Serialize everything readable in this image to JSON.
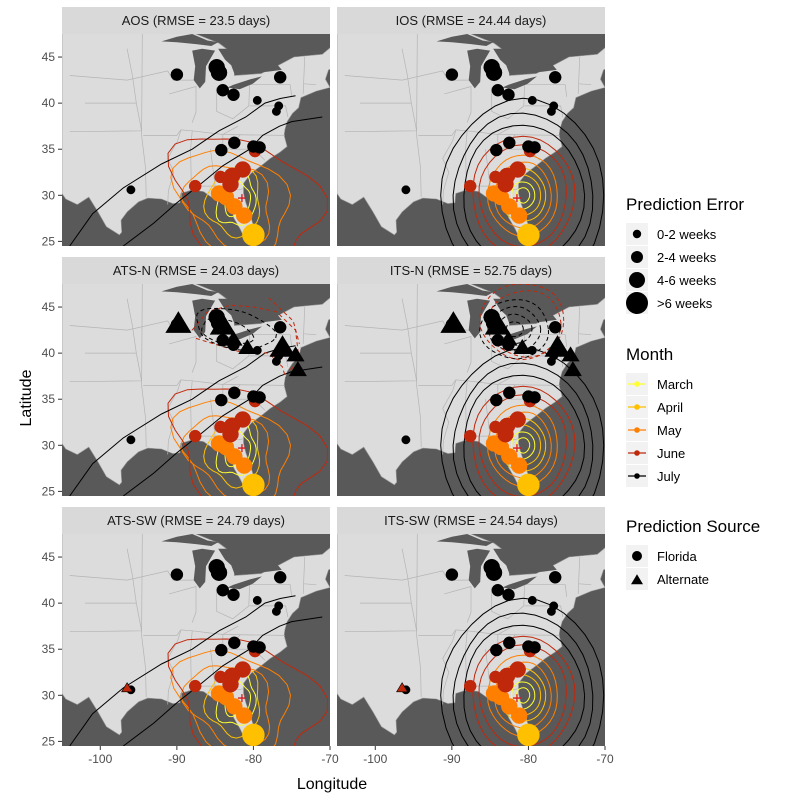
{
  "chart_data": {
    "type": "scatter",
    "xlabel": "Longitude",
    "ylabel": "Latitude",
    "xlim": [
      -105,
      -70
    ],
    "ylim": [
      24.5,
      47.5
    ],
    "x_ticks": [
      -100,
      -90,
      -80,
      -70
    ],
    "y_ticks": [
      25,
      30,
      35,
      40,
      45
    ],
    "grid": true,
    "origin": {
      "lon": -81.5,
      "lat": 29.7
    },
    "panels": [
      {
        "id": "aos",
        "title": "AOS (RMSE = 23.5 days)",
        "model": "gradient-lines"
      },
      {
        "id": "ios",
        "title": "IOS (RMSE = 24.44 days)",
        "model": "ring"
      },
      {
        "id": "atsn",
        "title": "ATS-N (RMSE = 24.03 days)",
        "model": "gradient-lines",
        "alt": "north"
      },
      {
        "id": "itsn",
        "title": "ITS-N (RMSE = 52.75 days)",
        "model": "ring",
        "alt": "north"
      },
      {
        "id": "atssw",
        "title": "ATS-SW (RMSE = 24.79 days)",
        "model": "gradient-lines",
        "alt": "southwest"
      },
      {
        "id": "itssw",
        "title": "ITS-SW (RMSE = 24.54 days)",
        "model": "ring",
        "alt": "southwest"
      }
    ],
    "florida_points": [
      {
        "lon": -80.0,
        "lat": 25.7,
        "err": 3,
        "month": "April"
      },
      {
        "lon": -81.2,
        "lat": 27.8,
        "err": 2,
        "month": "May"
      },
      {
        "lon": -82.5,
        "lat": 28.8,
        "err": 2,
        "month": "May"
      },
      {
        "lon": -83.6,
        "lat": 29.8,
        "err": 2,
        "month": "May"
      },
      {
        "lon": -84.5,
        "lat": 30.2,
        "err": 2,
        "month": "May"
      },
      {
        "lon": -83.0,
        "lat": 31.2,
        "err": 2,
        "month": "June"
      },
      {
        "lon": -84.3,
        "lat": 32.0,
        "err": 1,
        "month": "June"
      },
      {
        "lon": -82.8,
        "lat": 32.1,
        "err": 2,
        "month": "June"
      },
      {
        "lon": -81.4,
        "lat": 32.8,
        "err": 2,
        "month": "June"
      },
      {
        "lon": -87.6,
        "lat": 31.0,
        "err": 1,
        "month": "June"
      },
      {
        "lon": -79.8,
        "lat": 34.8,
        "err": 1,
        "month": "June"
      },
      {
        "lon": -96.0,
        "lat": 30.6,
        "err": 0,
        "month": "July"
      },
      {
        "lon": -84.2,
        "lat": 34.9,
        "err": 1,
        "month": "July"
      },
      {
        "lon": -82.5,
        "lat": 35.7,
        "err": 1,
        "month": "July"
      },
      {
        "lon": -80.0,
        "lat": 35.3,
        "err": 1,
        "month": "July"
      },
      {
        "lon": -79.2,
        "lat": 35.2,
        "err": 1,
        "month": "July"
      },
      {
        "lon": -77.0,
        "lat": 39.1,
        "err": 0,
        "month": "July"
      },
      {
        "lon": -76.7,
        "lat": 39.7,
        "err": 0,
        "month": "July"
      },
      {
        "lon": -79.5,
        "lat": 40.3,
        "err": 0,
        "month": "July"
      },
      {
        "lon": -82.6,
        "lat": 40.9,
        "err": 1,
        "month": "July"
      },
      {
        "lon": -84.0,
        "lat": 41.4,
        "err": 1,
        "month": "July"
      },
      {
        "lon": -84.5,
        "lat": 43.3,
        "err": 2,
        "month": "July"
      },
      {
        "lon": -84.8,
        "lat": 43.9,
        "err": 2,
        "month": "July"
      },
      {
        "lon": -90.0,
        "lat": 43.1,
        "err": 1,
        "month": "July"
      },
      {
        "lon": -76.5,
        "lat": 42.8,
        "err": 1,
        "month": "July"
      }
    ],
    "alternate_points": {
      "north": [
        {
          "lon": -89.8,
          "lat": 43.2,
          "err": 2,
          "month": "July"
        },
        {
          "lon": -84.0,
          "lat": 43.0,
          "err": 2,
          "month": "July"
        },
        {
          "lon": -82.6,
          "lat": 41.5,
          "err": 1,
          "month": "July"
        },
        {
          "lon": -80.8,
          "lat": 40.6,
          "err": 1,
          "month": "July"
        },
        {
          "lon": -76.2,
          "lat": 40.6,
          "err": 2,
          "month": "July"
        },
        {
          "lon": -74.5,
          "lat": 39.8,
          "err": 1,
          "month": "July"
        },
        {
          "lon": -74.2,
          "lat": 38.2,
          "err": 1,
          "month": "July"
        }
      ],
      "southwest": [
        {
          "lon": -96.5,
          "lat": 30.8,
          "err": 0,
          "month": "June"
        }
      ]
    },
    "contour_months": [
      "March",
      "April",
      "May",
      "June",
      "July"
    ],
    "legend": {
      "error": {
        "title": "Prediction Error",
        "items": [
          "0-2 weeks",
          "2-4 weeks",
          "4-6 weeks",
          ">6 weeks"
        ]
      },
      "month": {
        "title": "Month",
        "items": [
          "March",
          "April",
          "May",
          "June",
          "July"
        ]
      },
      "source": {
        "title": "Prediction Source",
        "items": [
          "Florida",
          "Alternate"
        ]
      }
    }
  },
  "colors": {
    "panel_bg": "#ebebeb",
    "strip_bg": "#d9d9d9",
    "land": "#dcdcdc",
    "ocean": "#595959",
    "lakes": "#595959",
    "borders": "#b4b4b4",
    "origin_marker": "#d7191c",
    "months": {
      "March": "#ffff33",
      "April": "#ffc000",
      "May": "#ff7f00",
      "June": "#c0280c",
      "July": "#000000"
    }
  }
}
